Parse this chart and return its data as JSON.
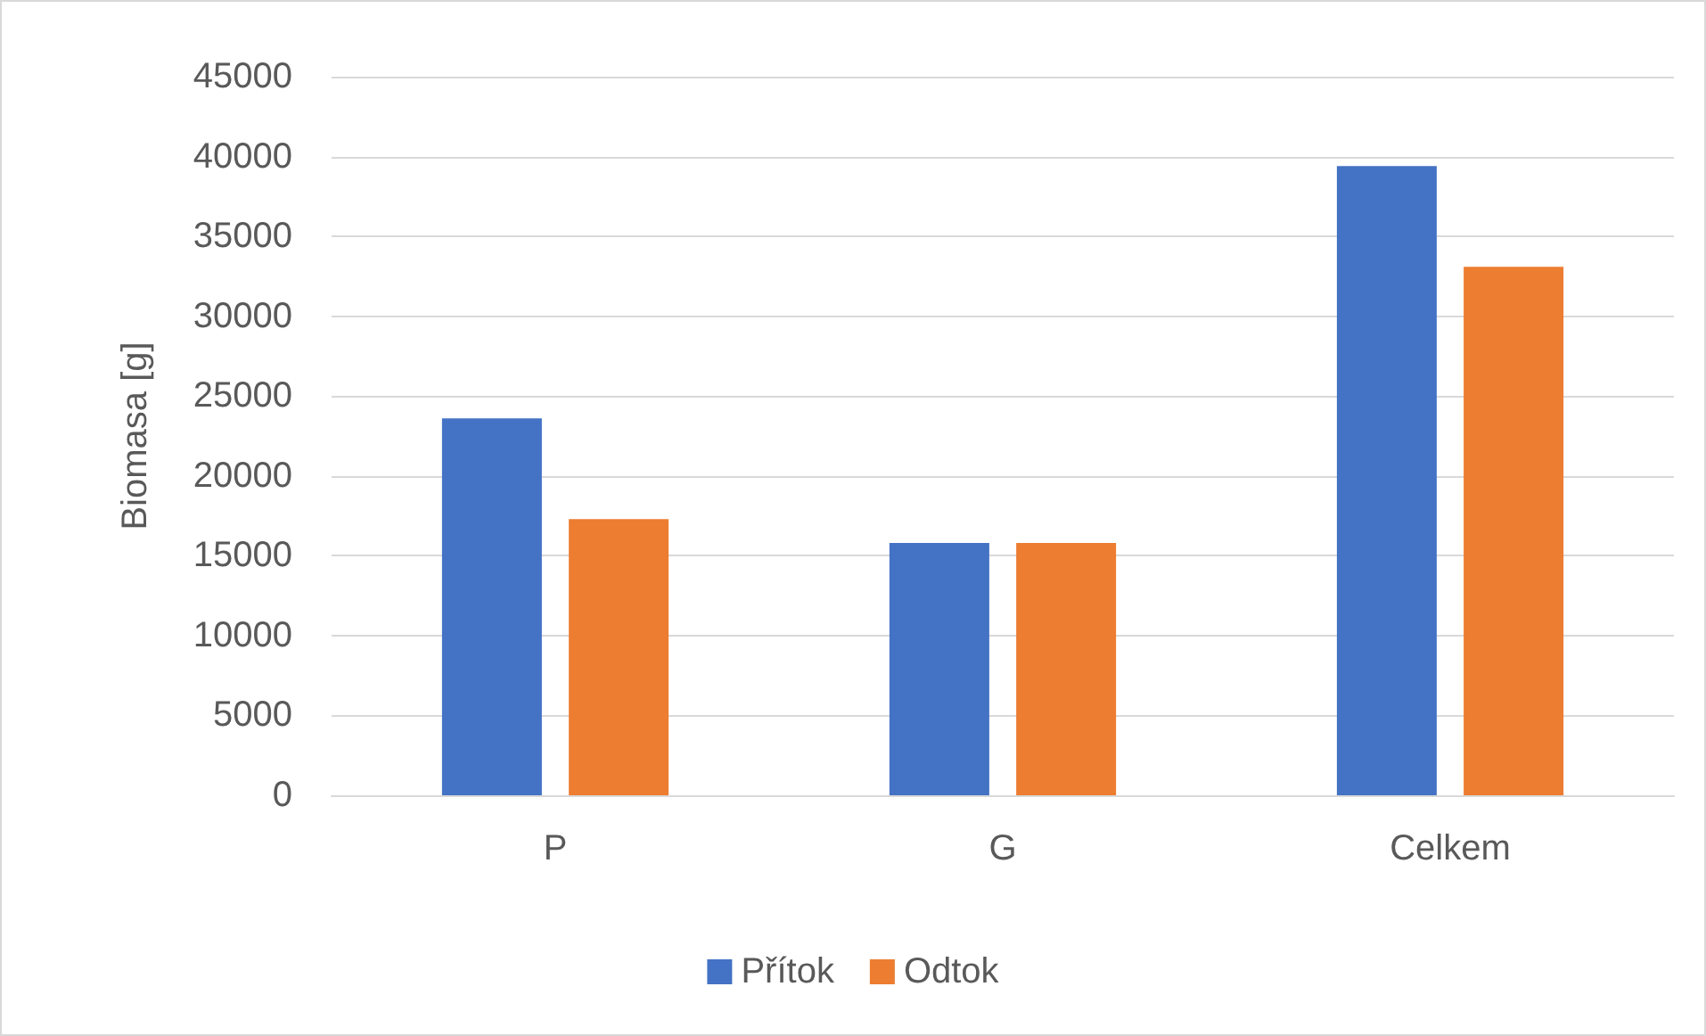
{
  "chart_data": {
    "type": "bar",
    "ylabel": "Biomasa [g]",
    "categories": [
      "P",
      "G",
      "Celkem"
    ],
    "series": [
      {
        "name": "Přítok",
        "color": "#4472c4",
        "values": [
          23600,
          15800,
          39400
        ]
      },
      {
        "name": "Odtok",
        "color": "#ed7d31",
        "values": [
          17300,
          15800,
          33100
        ]
      }
    ],
    "ylim": [
      0,
      45000
    ],
    "yticks": [
      0,
      5000,
      10000,
      15000,
      20000,
      25000,
      30000,
      35000,
      40000,
      45000
    ],
    "grid": "y",
    "legend": "bottom"
  }
}
